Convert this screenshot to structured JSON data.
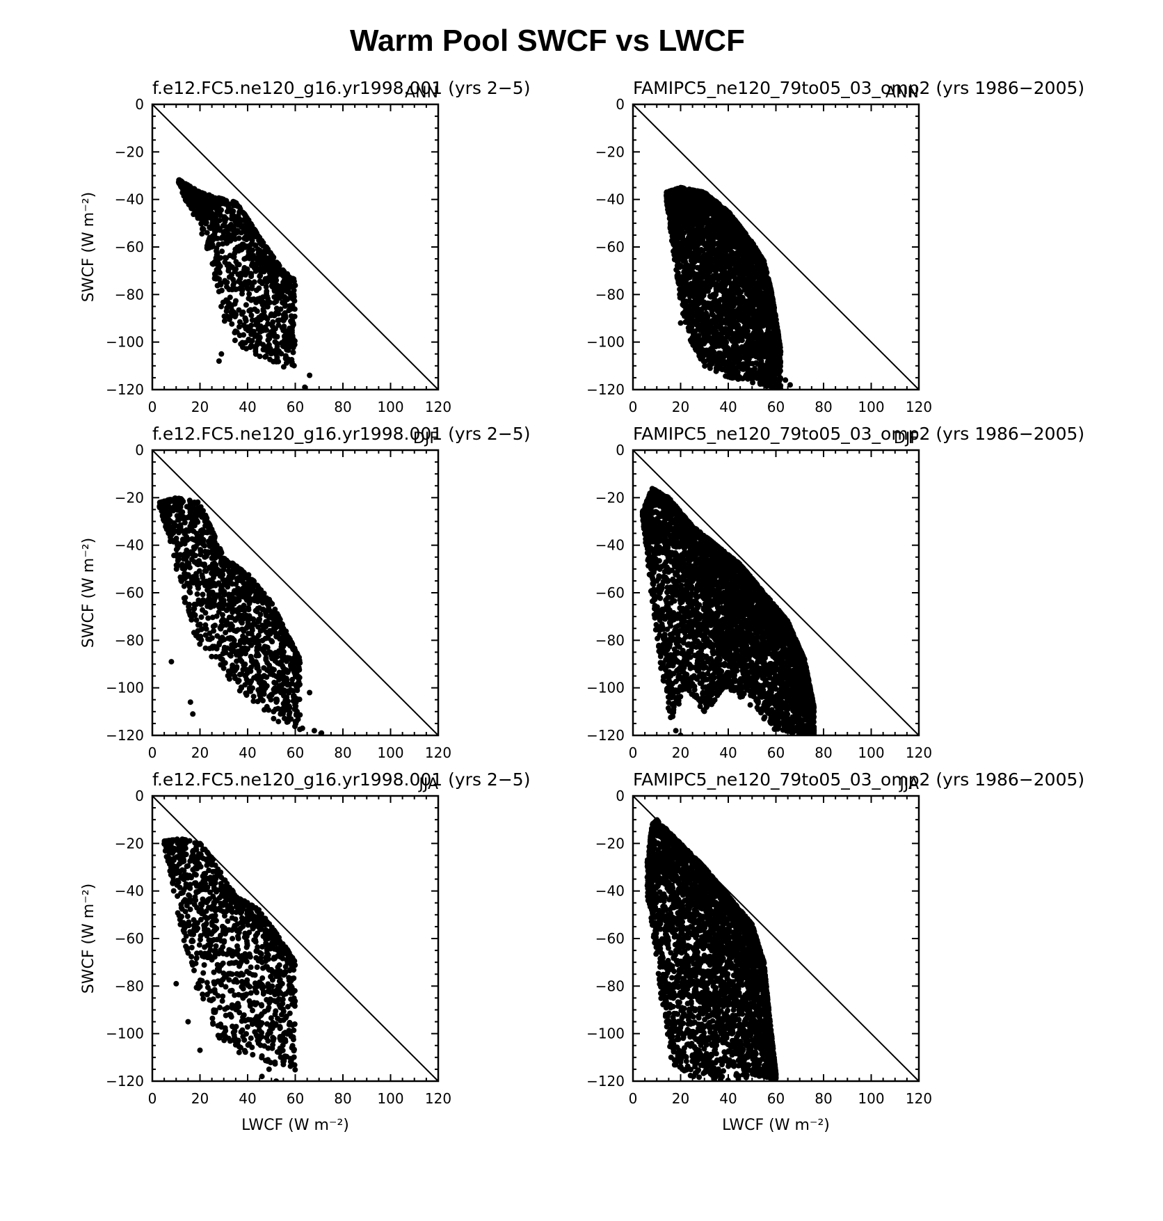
{
  "figure_title": "Warm Pool SWCF vs LWCF",
  "chart_data": [
    {
      "type": "scatter",
      "title": "f.e12.FC5.ne120_g16.yr1998.001 (yrs 2−5)",
      "season": "ANN",
      "xlabel": "",
      "ylabel": "SWCF (W m⁻²)",
      "xlim": [
        0,
        120
      ],
      "ylim": [
        -120,
        0
      ],
      "xticks": [
        "0",
        "20",
        "40",
        "60",
        "80",
        "100",
        "120"
      ],
      "yticks": [
        "0",
        "−20",
        "−40",
        "−60",
        "−80",
        "−100",
        "−120"
      ],
      "reference_line": "y = -x",
      "cluster": {
        "x": [
          11,
          60
        ],
        "y": [
          -31,
          -112
        ],
        "count": 1100,
        "upper": [
          [
            10,
            -31
          ],
          [
            20,
            -37
          ],
          [
            30,
            -40
          ],
          [
            35,
            -41
          ],
          [
            40,
            -48
          ],
          [
            45,
            -56
          ],
          [
            50,
            -63
          ],
          [
            55,
            -70
          ],
          [
            60,
            -74
          ]
        ],
        "lower": [
          [
            10,
            -34
          ],
          [
            15,
            -42
          ],
          [
            20,
            -52
          ],
          [
            25,
            -68
          ],
          [
            30,
            -92
          ],
          [
            35,
            -100
          ],
          [
            40,
            -104
          ],
          [
            50,
            -108
          ],
          [
            58,
            -112
          ]
        ]
      },
      "outliers": [
        [
          64,
          -119
        ],
        [
          66,
          -114
        ],
        [
          56,
          -107
        ],
        [
          58,
          -101
        ],
        [
          48,
          -102
        ],
        [
          28,
          -108
        ],
        [
          29,
          -105
        ]
      ]
    },
    {
      "type": "scatter",
      "title": "FAMIPC5_ne120_79to05_03_omp2 (yrs 1986−2005)",
      "season": "ANN",
      "xlabel": "",
      "ylabel": "",
      "xlim": [
        0,
        120
      ],
      "ylim": [
        -120,
        0
      ],
      "xticks": [
        "0",
        "20",
        "40",
        "60",
        "80",
        "100",
        "120"
      ],
      "yticks": [
        "0",
        "−20",
        "−40",
        "−60",
        "−80",
        "−100",
        "−120"
      ],
      "reference_line": "y = -x",
      "cluster": {
        "x": [
          14,
          62
        ],
        "y": [
          -35,
          -120
        ],
        "count": 3500,
        "upper": [
          [
            14,
            -37
          ],
          [
            20,
            -35
          ],
          [
            30,
            -37
          ],
          [
            40,
            -45
          ],
          [
            50,
            -58
          ],
          [
            55,
            -66
          ],
          [
            58,
            -78
          ],
          [
            60,
            -90
          ],
          [
            63,
            -110
          ],
          [
            66,
            -120
          ]
        ],
        "lower": [
          [
            14,
            -40
          ],
          [
            16,
            -55
          ],
          [
            18,
            -70
          ],
          [
            20,
            -85
          ],
          [
            25,
            -102
          ],
          [
            30,
            -110
          ],
          [
            40,
            -115
          ],
          [
            50,
            -117
          ],
          [
            60,
            -120
          ]
        ]
      },
      "outliers": [
        [
          66,
          -118
        ],
        [
          64,
          -116
        ],
        [
          20,
          -92
        ],
        [
          21,
          -88
        ]
      ]
    },
    {
      "type": "scatter",
      "title": "f.e12.FC5.ne120_g16.yr1998.001 (yrs 2−5)",
      "season": "DJF",
      "xlabel": "",
      "ylabel": "SWCF (W m⁻²)",
      "xlim": [
        0,
        120
      ],
      "ylim": [
        -120,
        0
      ],
      "xticks": [
        "0",
        "20",
        "40",
        "60",
        "80",
        "100",
        "120"
      ],
      "yticks": [
        "0",
        "−20",
        "−40",
        "−60",
        "−80",
        "−100",
        "−120"
      ],
      "reference_line": "y = -x",
      "cluster": {
        "x": [
          3,
          62
        ],
        "y": [
          -19,
          -118
        ],
        "count": 1300,
        "upper": [
          [
            3,
            -22
          ],
          [
            10,
            -20
          ],
          [
            20,
            -22
          ],
          [
            30,
            -45
          ],
          [
            40,
            -52
          ],
          [
            50,
            -64
          ],
          [
            58,
            -80
          ],
          [
            62,
            -88
          ]
        ],
        "lower": [
          [
            3,
            -25
          ],
          [
            8,
            -40
          ],
          [
            12,
            -60
          ],
          [
            18,
            -80
          ],
          [
            25,
            -88
          ],
          [
            35,
            -100
          ],
          [
            45,
            -110
          ],
          [
            55,
            -116
          ],
          [
            62,
            -118
          ]
        ]
      },
      "outliers": [
        [
          8,
          -89
        ],
        [
          16,
          -106
        ],
        [
          17,
          -111
        ],
        [
          66,
          -102
        ],
        [
          68,
          -118
        ],
        [
          71,
          -119
        ],
        [
          63,
          -117
        ]
      ]
    },
    {
      "type": "scatter",
      "title": "FAMIPC5_ne120_79to05_03_omp2 (yrs 1986−2005)",
      "season": "DJF",
      "xlabel": "",
      "ylabel": "",
      "xlim": [
        0,
        120
      ],
      "ylim": [
        -120,
        0
      ],
      "xticks": [
        "0",
        "20",
        "40",
        "60",
        "80",
        "100",
        "120"
      ],
      "yticks": [
        "0",
        "−20",
        "−40",
        "−60",
        "−80",
        "−100",
        "−120"
      ],
      "reference_line": "y = -x",
      "cluster": {
        "x": [
          4,
          76
        ],
        "y": [
          -16,
          -120
        ],
        "count": 4500,
        "upper": [
          [
            4,
            -26
          ],
          [
            8,
            -16
          ],
          [
            15,
            -20
          ],
          [
            25,
            -32
          ],
          [
            35,
            -40
          ],
          [
            45,
            -48
          ],
          [
            55,
            -60
          ],
          [
            65,
            -72
          ],
          [
            72,
            -88
          ],
          [
            76,
            -108
          ]
        ],
        "lower": [
          [
            4,
            -28
          ],
          [
            6,
            -45
          ],
          [
            8,
            -65
          ],
          [
            12,
            -95
          ],
          [
            16,
            -115
          ],
          [
            22,
            -100
          ],
          [
            30,
            -110
          ],
          [
            40,
            -100
          ],
          [
            50,
            -108
          ],
          [
            60,
            -118
          ],
          [
            72,
            -120
          ]
        ]
      },
      "outliers": [
        [
          74,
          -117
        ],
        [
          76,
          -118
        ],
        [
          20,
          -120
        ],
        [
          18,
          -118
        ]
      ]
    },
    {
      "type": "scatter",
      "title": "f.e12.FC5.ne120_g16.yr1998.001 (yrs 2−5)",
      "season": "JJA",
      "xlabel": "LWCF (W m⁻²)",
      "ylabel": "SWCF (W m⁻²)",
      "xlim": [
        0,
        120
      ],
      "ylim": [
        -120,
        0
      ],
      "xticks": [
        "0",
        "20",
        "40",
        "60",
        "80",
        "100",
        "120"
      ],
      "yticks": [
        "0",
        "−20",
        "−40",
        "−60",
        "−80",
        "−100",
        "−120"
      ],
      "reference_line": "y = -x",
      "cluster": {
        "x": [
          5,
          60
        ],
        "y": [
          -18,
          -117
        ],
        "count": 1150,
        "upper": [
          [
            5,
            -19
          ],
          [
            12,
            -18
          ],
          [
            20,
            -20
          ],
          [
            25,
            -26
          ],
          [
            35,
            -42
          ],
          [
            45,
            -48
          ],
          [
            55,
            -62
          ],
          [
            60,
            -70
          ]
        ],
        "lower": [
          [
            5,
            -21
          ],
          [
            8,
            -35
          ],
          [
            10,
            -48
          ],
          [
            15,
            -68
          ],
          [
            20,
            -86
          ],
          [
            30,
            -106
          ],
          [
            40,
            -110
          ],
          [
            50,
            -113
          ],
          [
            60,
            -116
          ]
        ]
      },
      "outliers": [
        [
          10,
          -79
        ],
        [
          15,
          -95
        ],
        [
          20,
          -107
        ],
        [
          46,
          -118
        ],
        [
          49,
          -115
        ],
        [
          55,
          -113
        ],
        [
          52,
          -120
        ]
      ]
    },
    {
      "type": "scatter",
      "title": "FAMIPC5_ne120_79to05_03_omp2 (yrs 1986−2005)",
      "season": "JJA",
      "xlabel": "LWCF (W m⁻²)",
      "ylabel": "",
      "xlim": [
        0,
        120
      ],
      "ylim": [
        -120,
        0
      ],
      "xticks": [
        "0",
        "20",
        "40",
        "60",
        "80",
        "100",
        "120"
      ],
      "yticks": [
        "0",
        "−20",
        "−40",
        "−60",
        "−80",
        "−100",
        "−120"
      ],
      "reference_line": "y = -x",
      "cluster": {
        "x": [
          6,
          60
        ],
        "y": [
          -10,
          -120
        ],
        "count": 3500,
        "upper": [
          [
            6,
            -28
          ],
          [
            8,
            -12
          ],
          [
            10,
            -10
          ],
          [
            15,
            -15
          ],
          [
            20,
            -20
          ],
          [
            30,
            -30
          ],
          [
            40,
            -42
          ],
          [
            50,
            -54
          ],
          [
            55,
            -70
          ],
          [
            57,
            -90
          ],
          [
            60,
            -117
          ]
        ],
        "lower": [
          [
            6,
            -42
          ],
          [
            8,
            -55
          ],
          [
            10,
            -72
          ],
          [
            12,
            -88
          ],
          [
            15,
            -105
          ],
          [
            18,
            -115
          ],
          [
            25,
            -118
          ],
          [
            40,
            -120
          ],
          [
            50,
            -118
          ],
          [
            60,
            -119
          ]
        ]
      },
      "outliers": [
        [
          60,
          -117
        ],
        [
          58,
          -119
        ],
        [
          20,
          -112
        ],
        [
          16,
          -110
        ]
      ]
    }
  ]
}
